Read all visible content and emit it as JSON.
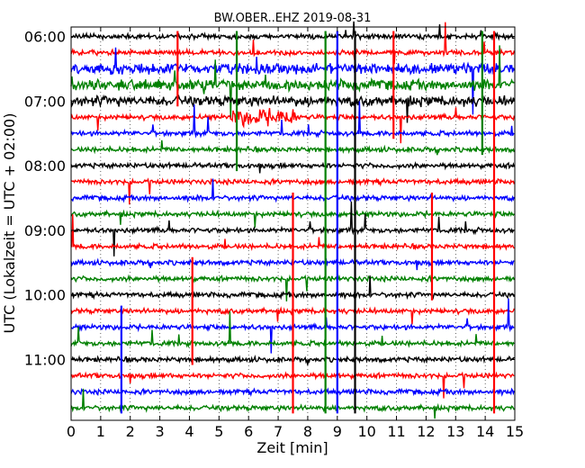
{
  "chart_data": {
    "type": "line",
    "title": "BW.OBER..EHZ 2019-08-31",
    "xlabel": "Zeit  [min]",
    "ylabel": "UTC (Lokalzeit = UTC + 02:00)",
    "xlim": [
      0,
      15
    ],
    "x_ticks": [
      "0",
      "1",
      "2",
      "3",
      "4",
      "5",
      "6",
      "7",
      "8",
      "9",
      "10",
      "11",
      "12",
      "13",
      "14",
      "15"
    ],
    "y_tick_labels": [
      "06:00",
      "07:00",
      "08:00",
      "09:00",
      "10:00",
      "11:00"
    ],
    "trace_start": "06:00",
    "trace_interval_min": 15,
    "trace_count": 24,
    "colors": [
      "#000000",
      "#ff0000",
      "#0000ff",
      "#008000"
    ],
    "grid": "vertical-dotted"
  }
}
